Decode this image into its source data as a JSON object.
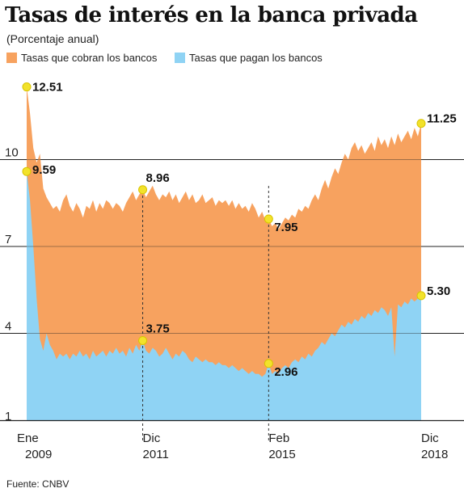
{
  "title": "Tasas de interés en la banca privada",
  "subtitle": "(Porcentaje anual)",
  "source": "Fuente: CNBV",
  "colors": {
    "cobran": "#f7a25f",
    "pagan": "#8fd3f4",
    "marker": "#f2e22b",
    "grid": "#222222"
  },
  "chart_data": {
    "type": "area",
    "x_range": [
      2009.0,
      2018.917
    ],
    "ylim": [
      1,
      13
    ],
    "yticks": [
      1,
      4,
      7,
      10
    ],
    "xticks": [
      {
        "x": 2009.0,
        "line1": "Ene",
        "line2": "2009"
      },
      {
        "x": 2011.917,
        "line1": "Dic",
        "line2": "2011"
      },
      {
        "x": 2015.083,
        "line1": "Feb",
        "line2": "2015"
      },
      {
        "x": 2018.917,
        "line1": "Dic",
        "line2": "2018"
      }
    ],
    "series": [
      {
        "name": "Tasas que cobran los bancos",
        "color": "#f7a25f",
        "points": [
          [
            2009.0,
            12.51
          ],
          [
            2009.083,
            11.6
          ],
          [
            2009.167,
            10.4
          ],
          [
            2009.25,
            9.9
          ],
          [
            2009.333,
            10.2
          ],
          [
            2009.417,
            9.0
          ],
          [
            2009.5,
            8.7
          ],
          [
            2009.583,
            8.5
          ],
          [
            2009.667,
            8.3
          ],
          [
            2009.75,
            8.4
          ],
          [
            2009.833,
            8.2
          ],
          [
            2009.917,
            8.6
          ],
          [
            2010.0,
            8.8
          ],
          [
            2010.083,
            8.4
          ],
          [
            2010.167,
            8.2
          ],
          [
            2010.25,
            8.5
          ],
          [
            2010.333,
            8.3
          ],
          [
            2010.417,
            8.0
          ],
          [
            2010.5,
            8.4
          ],
          [
            2010.583,
            8.3
          ],
          [
            2010.667,
            8.6
          ],
          [
            2010.75,
            8.2
          ],
          [
            2010.833,
            8.5
          ],
          [
            2010.917,
            8.3
          ],
          [
            2011.0,
            8.6
          ],
          [
            2011.083,
            8.5
          ],
          [
            2011.167,
            8.3
          ],
          [
            2011.25,
            8.5
          ],
          [
            2011.333,
            8.4
          ],
          [
            2011.417,
            8.2
          ],
          [
            2011.5,
            8.5
          ],
          [
            2011.583,
            8.7
          ],
          [
            2011.667,
            8.9
          ],
          [
            2011.75,
            8.6
          ],
          [
            2011.833,
            8.8
          ],
          [
            2011.917,
            8.96
          ],
          [
            2012.0,
            8.7
          ],
          [
            2012.083,
            8.9
          ],
          [
            2012.167,
            9.1
          ],
          [
            2012.25,
            8.8
          ],
          [
            2012.333,
            8.6
          ],
          [
            2012.417,
            8.8
          ],
          [
            2012.5,
            8.7
          ],
          [
            2012.583,
            8.9
          ],
          [
            2012.667,
            8.6
          ],
          [
            2012.75,
            8.8
          ],
          [
            2012.833,
            8.5
          ],
          [
            2012.917,
            8.7
          ],
          [
            2013.0,
            8.9
          ],
          [
            2013.083,
            8.6
          ],
          [
            2013.167,
            8.8
          ],
          [
            2013.25,
            8.5
          ],
          [
            2013.333,
            8.6
          ],
          [
            2013.417,
            8.8
          ],
          [
            2013.5,
            8.5
          ],
          [
            2013.583,
            8.6
          ],
          [
            2013.667,
            8.7
          ],
          [
            2013.75,
            8.4
          ],
          [
            2013.833,
            8.6
          ],
          [
            2013.917,
            8.5
          ],
          [
            2014.0,
            8.6
          ],
          [
            2014.083,
            8.4
          ],
          [
            2014.167,
            8.6
          ],
          [
            2014.25,
            8.3
          ],
          [
            2014.333,
            8.5
          ],
          [
            2014.417,
            8.3
          ],
          [
            2014.5,
            8.4
          ],
          [
            2014.583,
            8.2
          ],
          [
            2014.667,
            8.5
          ],
          [
            2014.75,
            8.3
          ],
          [
            2014.833,
            8.0
          ],
          [
            2014.917,
            8.2
          ],
          [
            2015.0,
            7.9
          ],
          [
            2015.083,
            7.95
          ],
          [
            2015.167,
            7.7
          ],
          [
            2015.25,
            7.8
          ],
          [
            2015.333,
            7.6
          ],
          [
            2015.417,
            7.8
          ],
          [
            2015.5,
            8.0
          ],
          [
            2015.583,
            7.9
          ],
          [
            2015.667,
            8.1
          ],
          [
            2015.75,
            8.0
          ],
          [
            2015.833,
            8.3
          ],
          [
            2015.917,
            8.2
          ],
          [
            2016.0,
            8.4
          ],
          [
            2016.083,
            8.3
          ],
          [
            2016.167,
            8.6
          ],
          [
            2016.25,
            8.8
          ],
          [
            2016.333,
            8.6
          ],
          [
            2016.417,
            9.0
          ],
          [
            2016.5,
            9.3
          ],
          [
            2016.583,
            9.0
          ],
          [
            2016.667,
            9.4
          ],
          [
            2016.75,
            9.7
          ],
          [
            2016.833,
            9.5
          ],
          [
            2016.917,
            9.9
          ],
          [
            2017.0,
            10.2
          ],
          [
            2017.083,
            10.0
          ],
          [
            2017.167,
            10.4
          ],
          [
            2017.25,
            10.6
          ],
          [
            2017.333,
            10.3
          ],
          [
            2017.417,
            10.5
          ],
          [
            2017.5,
            10.2
          ],
          [
            2017.583,
            10.4
          ],
          [
            2017.667,
            10.6
          ],
          [
            2017.75,
            10.3
          ],
          [
            2017.833,
            10.8
          ],
          [
            2017.917,
            10.5
          ],
          [
            2018.0,
            10.7
          ],
          [
            2018.083,
            10.4
          ],
          [
            2018.167,
            10.8
          ],
          [
            2018.25,
            10.5
          ],
          [
            2018.333,
            10.9
          ],
          [
            2018.417,
            10.6
          ],
          [
            2018.5,
            10.8
          ],
          [
            2018.583,
            11.0
          ],
          [
            2018.667,
            10.7
          ],
          [
            2018.75,
            11.1
          ],
          [
            2018.833,
            10.8
          ],
          [
            2018.917,
            11.25
          ]
        ]
      },
      {
        "name": "Tasas que pagan los bancos",
        "color": "#8fd3f4",
        "points": [
          [
            2009.0,
            9.59
          ],
          [
            2009.083,
            8.6
          ],
          [
            2009.167,
            7.0
          ],
          [
            2009.25,
            5.2
          ],
          [
            2009.333,
            3.8
          ],
          [
            2009.417,
            3.4
          ],
          [
            2009.5,
            4.0
          ],
          [
            2009.583,
            3.6
          ],
          [
            2009.667,
            3.4
          ],
          [
            2009.75,
            3.1
          ],
          [
            2009.833,
            3.3
          ],
          [
            2009.917,
            3.2
          ],
          [
            2010.0,
            3.3
          ],
          [
            2010.083,
            3.1
          ],
          [
            2010.167,
            3.3
          ],
          [
            2010.25,
            3.2
          ],
          [
            2010.333,
            3.4
          ],
          [
            2010.417,
            3.2
          ],
          [
            2010.5,
            3.3
          ],
          [
            2010.583,
            3.1
          ],
          [
            2010.667,
            3.4
          ],
          [
            2010.75,
            3.2
          ],
          [
            2010.833,
            3.3
          ],
          [
            2010.917,
            3.4
          ],
          [
            2011.0,
            3.2
          ],
          [
            2011.083,
            3.4
          ],
          [
            2011.167,
            3.3
          ],
          [
            2011.25,
            3.5
          ],
          [
            2011.333,
            3.3
          ],
          [
            2011.417,
            3.4
          ],
          [
            2011.5,
            3.2
          ],
          [
            2011.583,
            3.5
          ],
          [
            2011.667,
            3.3
          ],
          [
            2011.75,
            3.6
          ],
          [
            2011.833,
            3.4
          ],
          [
            2011.917,
            3.75
          ],
          [
            2012.0,
            3.4
          ],
          [
            2012.083,
            3.3
          ],
          [
            2012.167,
            3.5
          ],
          [
            2012.25,
            3.4
          ],
          [
            2012.333,
            3.2
          ],
          [
            2012.417,
            3.3
          ],
          [
            2012.5,
            3.5
          ],
          [
            2012.583,
            3.3
          ],
          [
            2012.667,
            3.1
          ],
          [
            2012.75,
            3.3
          ],
          [
            2012.833,
            3.2
          ],
          [
            2012.917,
            3.4
          ],
          [
            2013.0,
            3.3
          ],
          [
            2013.083,
            3.1
          ],
          [
            2013.167,
            3.0
          ],
          [
            2013.25,
            3.2
          ],
          [
            2013.333,
            3.1
          ],
          [
            2013.417,
            3.0
          ],
          [
            2013.5,
            3.1
          ],
          [
            2013.583,
            3.0
          ],
          [
            2013.667,
            3.0
          ],
          [
            2013.75,
            2.9
          ],
          [
            2013.833,
            3.0
          ],
          [
            2013.917,
            2.9
          ],
          [
            2014.0,
            2.9
          ],
          [
            2014.083,
            2.8
          ],
          [
            2014.167,
            2.9
          ],
          [
            2014.25,
            2.8
          ],
          [
            2014.333,
            2.7
          ],
          [
            2014.417,
            2.8
          ],
          [
            2014.5,
            2.7
          ],
          [
            2014.583,
            2.6
          ],
          [
            2014.667,
            2.7
          ],
          [
            2014.75,
            2.6
          ],
          [
            2014.833,
            2.6
          ],
          [
            2014.917,
            2.5
          ],
          [
            2015.0,
            2.6
          ],
          [
            2015.083,
            2.96
          ],
          [
            2015.167,
            2.6
          ],
          [
            2015.25,
            2.7
          ],
          [
            2015.333,
            2.6
          ],
          [
            2015.417,
            2.8
          ],
          [
            2015.5,
            2.9
          ],
          [
            2015.583,
            2.8
          ],
          [
            2015.667,
            3.0
          ],
          [
            2015.75,
            3.1
          ],
          [
            2015.833,
            3.0
          ],
          [
            2015.917,
            3.2
          ],
          [
            2016.0,
            3.1
          ],
          [
            2016.083,
            3.3
          ],
          [
            2016.167,
            3.2
          ],
          [
            2016.25,
            3.4
          ],
          [
            2016.333,
            3.5
          ],
          [
            2016.417,
            3.7
          ],
          [
            2016.5,
            3.6
          ],
          [
            2016.583,
            3.8
          ],
          [
            2016.667,
            4.0
          ],
          [
            2016.75,
            3.9
          ],
          [
            2016.833,
            4.1
          ],
          [
            2016.917,
            4.3
          ],
          [
            2017.0,
            4.2
          ],
          [
            2017.083,
            4.4
          ],
          [
            2017.167,
            4.3
          ],
          [
            2017.25,
            4.5
          ],
          [
            2017.333,
            4.4
          ],
          [
            2017.417,
            4.6
          ],
          [
            2017.5,
            4.5
          ],
          [
            2017.583,
            4.7
          ],
          [
            2017.667,
            4.6
          ],
          [
            2017.75,
            4.8
          ],
          [
            2017.833,
            4.7
          ],
          [
            2017.917,
            4.9
          ],
          [
            2018.0,
            4.8
          ],
          [
            2018.083,
            4.6
          ],
          [
            2018.167,
            4.9
          ],
          [
            2018.25,
            3.2
          ],
          [
            2018.333,
            5.0
          ],
          [
            2018.417,
            4.9
          ],
          [
            2018.5,
            5.1
          ],
          [
            2018.583,
            5.0
          ],
          [
            2018.667,
            5.2
          ],
          [
            2018.75,
            5.1
          ],
          [
            2018.833,
            5.2
          ],
          [
            2018.917,
            5.3
          ]
        ]
      }
    ],
    "annotations": [
      {
        "series": 0,
        "x": 2009.0,
        "y": 12.51,
        "label": "12.51",
        "anchor": "right",
        "dy": 0
      },
      {
        "series": 1,
        "x": 2009.0,
        "y": 9.59,
        "label": "9.59",
        "anchor": "right",
        "dy": -2
      },
      {
        "series": 0,
        "x": 2011.917,
        "y": 8.96,
        "label": "8.96",
        "anchor": "up",
        "dy": 0
      },
      {
        "series": 1,
        "x": 2011.917,
        "y": 3.75,
        "label": "3.75",
        "anchor": "up",
        "dy": 0
      },
      {
        "series": 0,
        "x": 2015.083,
        "y": 7.95,
        "label": "7.95",
        "anchor": "right",
        "dy": 10
      },
      {
        "series": 1,
        "x": 2015.083,
        "y": 2.96,
        "label": "2.96",
        "anchor": "right",
        "dy": 10
      },
      {
        "series": 0,
        "x": 2018.917,
        "y": 11.25,
        "label": "11.25",
        "anchor": "right",
        "dy": -6
      },
      {
        "series": 1,
        "x": 2018.917,
        "y": 5.3,
        "label": "5.30",
        "anchor": "right",
        "dy": -6
      }
    ],
    "guides": [
      2011.917,
      2015.083
    ]
  }
}
